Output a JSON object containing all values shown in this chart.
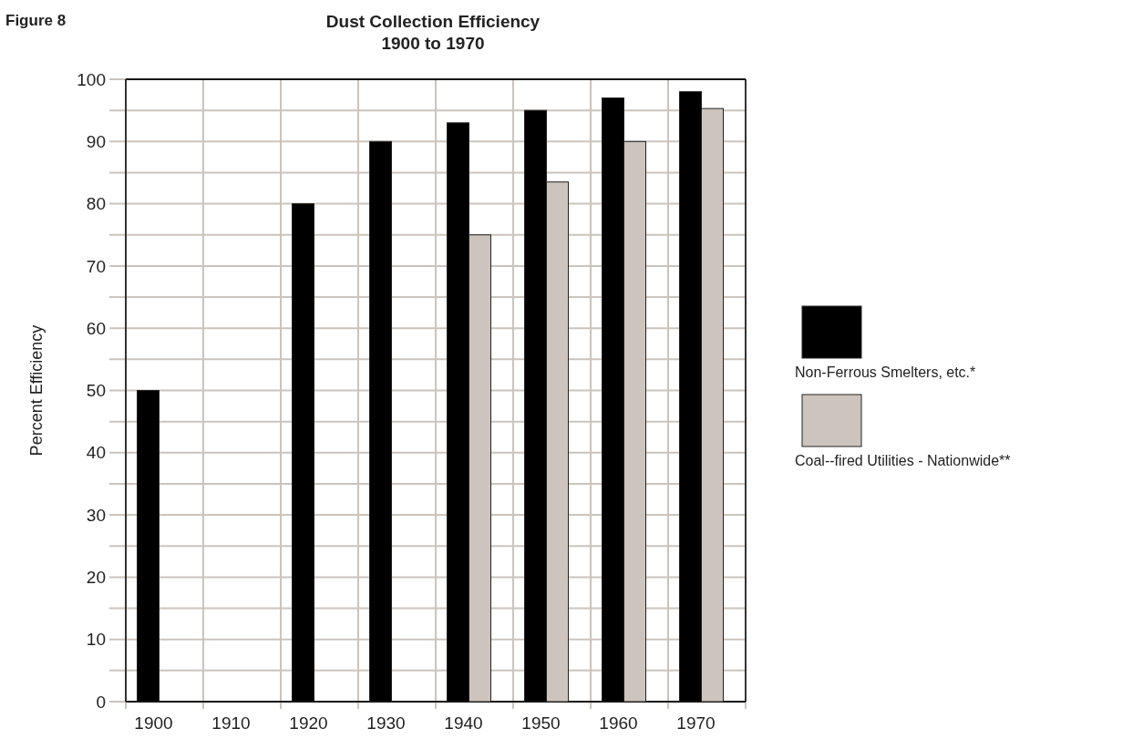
{
  "chart_data": {
    "type": "bar",
    "title": "Dust Collection Efficiency\n1900 to 1970",
    "ylabel": "Percent Efficiency",
    "annotations": [
      "Figure 8"
    ],
    "categories": [
      "1900",
      "1910",
      "1920",
      "1930",
      "1940",
      "1950",
      "1960",
      "1970"
    ],
    "series": [
      {
        "name": "Non-Ferrous Smelters, etc.*",
        "color": "#000000",
        "values": [
          50,
          null,
          80,
          90,
          93,
          95,
          97,
          98
        ]
      },
      {
        "name": "Coal--fired Utilities - Nationwide**",
        "color": "#cdc4bd",
        "values": [
          null,
          null,
          null,
          null,
          75,
          83.5,
          90,
          95.3
        ]
      }
    ],
    "ylim": [
      0,
      100
    ],
    "yticks": [
      0,
      {
        "value": 5,
        "label": null
      },
      10,
      {
        "value": 15,
        "label": null
      },
      20,
      {
        "value": 25,
        "label": null
      },
      30,
      {
        "value": 35,
        "label": null
      },
      40,
      {
        "value": 45,
        "label": null
      },
      50,
      {
        "value": 55,
        "label": null
      },
      60,
      {
        "value": 65,
        "label": null
      },
      70,
      {
        "value": 75,
        "label": null
      },
      80,
      {
        "value": 85,
        "label": null
      },
      90,
      {
        "value": 95,
        "label": null
      },
      100
    ],
    "grid": true,
    "legend": "right"
  }
}
